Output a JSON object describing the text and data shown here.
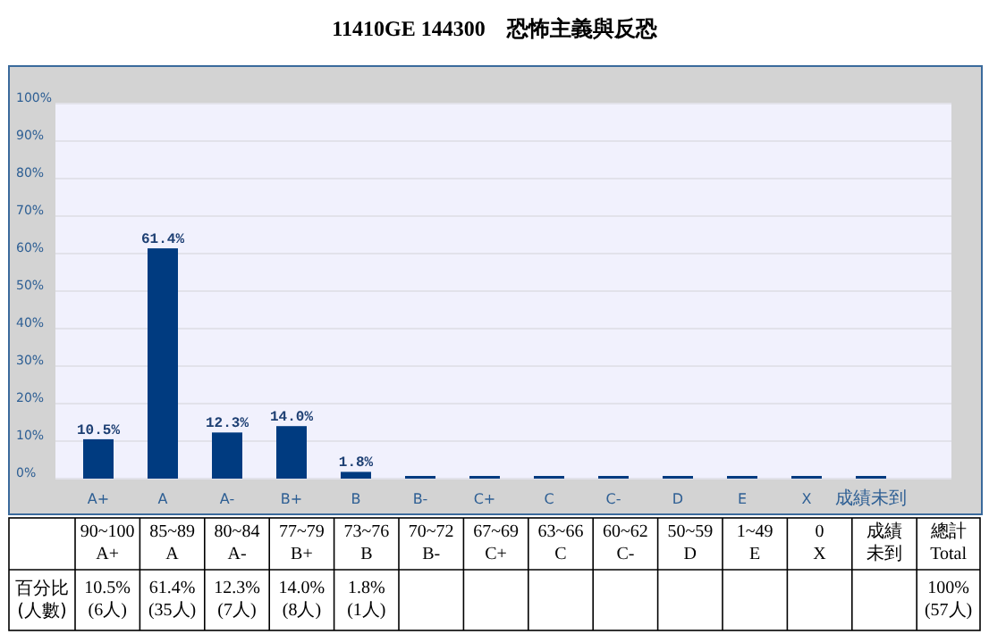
{
  "chart_data": {
    "type": "bar",
    "title": "11410GE 144300　恐怖主義與反恐",
    "categories": [
      "A+",
      "A",
      "A-",
      "B+",
      "B",
      "B-",
      "C+",
      "C",
      "C-",
      "D",
      "E",
      "X",
      "成績未到"
    ],
    "values": [
      10.5,
      61.4,
      12.3,
      14,
      1.8,
      0,
      0,
      0,
      0,
      0,
      0,
      0,
      0
    ],
    "value_labels": [
      "10.5%",
      "61.4%",
      "12.3%",
      "14.0%",
      "1.8%",
      null,
      null,
      null,
      null,
      null,
      null,
      null,
      null
    ],
    "color": "#003b80",
    "ylim": [
      0,
      100
    ],
    "yticks": [
      {
        "value": 0,
        "label": "0%"
      },
      {
        "value": 10,
        "label": "10%"
      },
      {
        "value": 20,
        "label": "20%"
      },
      {
        "value": 30,
        "label": "30%"
      },
      {
        "value": 40,
        "label": "40%"
      },
      {
        "value": 50,
        "label": "50%"
      },
      {
        "value": 60,
        "label": "60%"
      },
      {
        "value": 70,
        "label": "70%"
      },
      {
        "value": 80,
        "label": "80%"
      },
      {
        "value": 90,
        "label": "90%"
      },
      {
        "value": 100,
        "label": "100%"
      }
    ],
    "grid": "y",
    "annotations": [
      "90~100\nA+",
      "85~89\nA",
      "80~84\nA-",
      "77~79\nB+",
      "73~76\nB",
      "70~72\nB-",
      "67~69\nC+",
      "63~66\nC",
      "60~62\nC-",
      "50~59\nD",
      "1~49\nE",
      "0\nX",
      "成績未到",
      "總計\nTotal",
      "百分比\n(人數)",
      "10.5%\n(6人)",
      "61.4%\n(35人)",
      "12.3%\n(7人)",
      "14.0%\n(8人)",
      "1.8%\n(1人)",
      "100%\n(57人)"
    ]
  }
}
